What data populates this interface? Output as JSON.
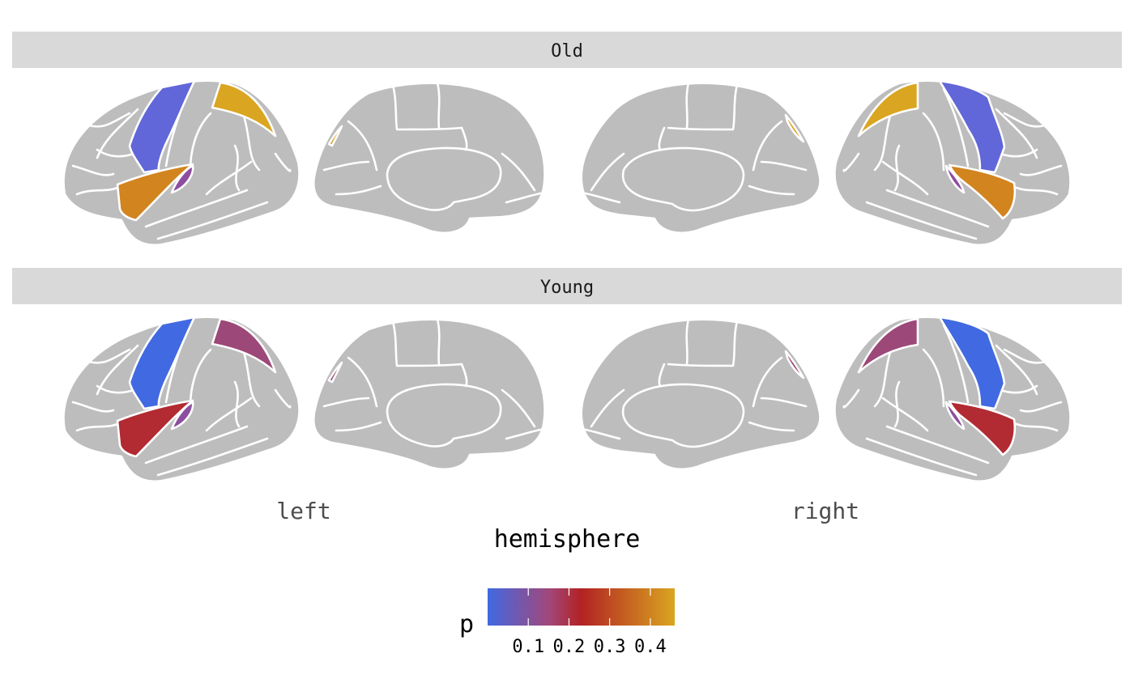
{
  "chart_data": {
    "type": "brain-atlas",
    "facets": [
      {
        "label": "Old",
        "regions": [
          {
            "name": "precentral",
            "value": 0.0,
            "color": "#6166d8"
          },
          {
            "name": "superiorparietal",
            "value": 0.45,
            "color": "#daa520"
          },
          {
            "name": "superiortemporal",
            "value": 0.38,
            "color": "#d2841e"
          },
          {
            "name": "transversetemporal",
            "value": 0.1,
            "color": "#8e4da0"
          }
        ]
      },
      {
        "label": "Young",
        "regions": [
          {
            "name": "precentral",
            "value": 0.0,
            "color": "#4169e1"
          },
          {
            "name": "superiorparietal",
            "value": 0.12,
            "color": "#9c4878"
          },
          {
            "name": "superiortemporal",
            "value": 0.21,
            "color": "#b22a32"
          },
          {
            "name": "transversetemporal",
            "value": 0.07,
            "color": "#8c4f9e"
          }
        ]
      }
    ],
    "x_ticks": [
      "left",
      "right"
    ],
    "xlabel": "hemisphere",
    "legend": {
      "title": "p",
      "position": "bottom",
      "range": [
        0.0,
        0.46
      ],
      "breaks": [
        0.1,
        0.2,
        0.3,
        0.4
      ],
      "break_labels": [
        "0.1",
        "0.2",
        "0.3",
        "0.4"
      ],
      "gradient_colors": [
        "#4169e1",
        "#a2477b",
        "#b22222",
        "#daa520"
      ]
    },
    "na_color": "#bdbdbd",
    "border_color": "#ffffff",
    "strip_background": "#d9d9d9"
  }
}
